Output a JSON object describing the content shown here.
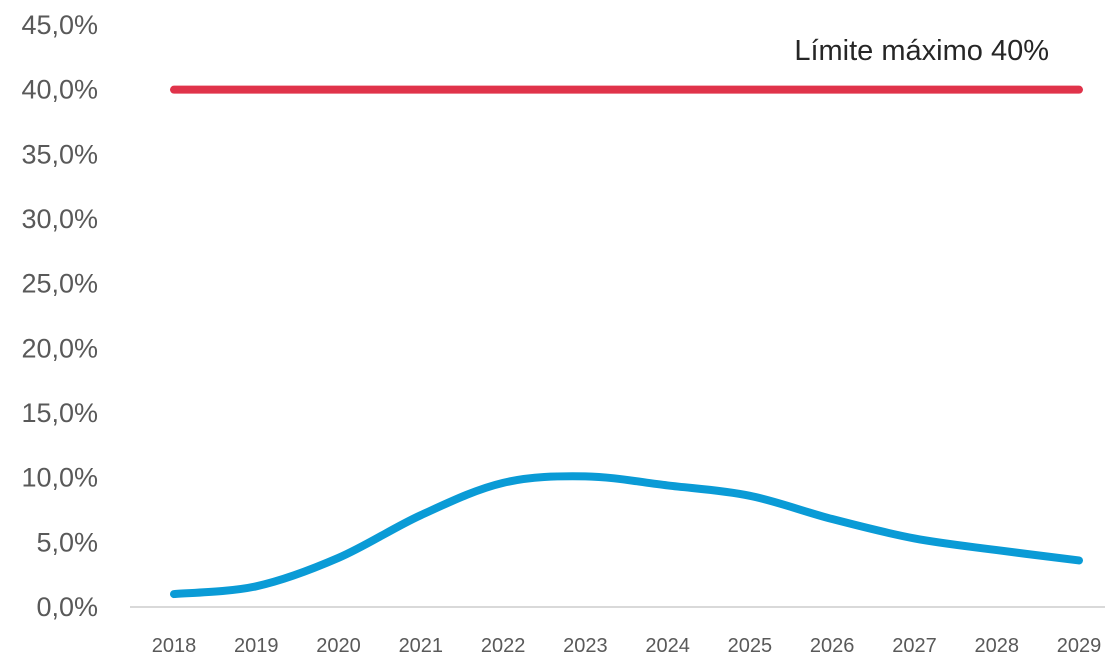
{
  "chart_data": {
    "type": "line",
    "x": [
      "2018",
      "2019",
      "2020",
      "2021",
      "2022",
      "2023",
      "2024",
      "2025",
      "2026",
      "2027",
      "2028",
      "2029"
    ],
    "series": [
      {
        "values": [
          1.0,
          1.6,
          3.8,
          7.1,
          9.6,
          10.1,
          9.4,
          8.6,
          6.8,
          5.3,
          4.4,
          3.6
        ],
        "color": "#0a9bd6"
      },
      {
        "values": [
          40,
          40,
          40,
          40,
          40,
          40,
          40,
          40,
          40,
          40,
          40,
          40
        ],
        "color": "#e0334a"
      }
    ],
    "ylim": [
      0,
      45
    ],
    "yticks": [
      0,
      5,
      10,
      15,
      20,
      25,
      30,
      35,
      40,
      45
    ],
    "ytick_labels": [
      "0,0%",
      "5,0%",
      "10,0%",
      "15,0%",
      "20,0%",
      "25,0%",
      "30,0%",
      "35,0%",
      "40,0%",
      "45,0%"
    ],
    "annotation": "Límite máximo 40%",
    "grid": false,
    "legend": "none"
  }
}
